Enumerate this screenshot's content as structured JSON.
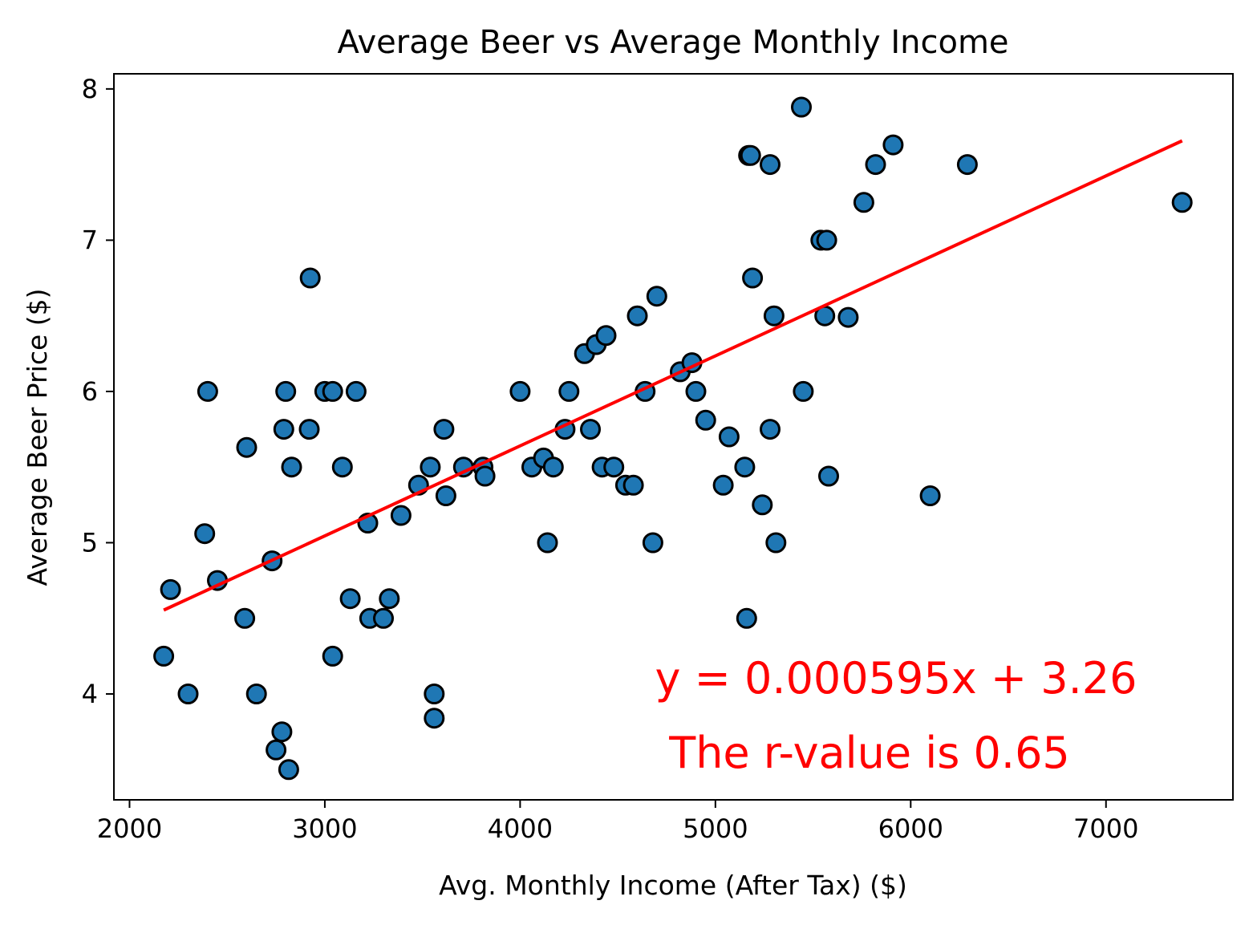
{
  "chart_data": {
    "type": "scatter",
    "title": "Average Beer vs Average Monthly Income",
    "xlabel": "Avg. Monthly Income (After Tax) ($)",
    "ylabel": "Average Beer Price ($)",
    "xlim": [
      1920,
      7650
    ],
    "ylim": [
      3.3,
      8.1
    ],
    "xticks": [
      2000,
      3000,
      4000,
      5000,
      6000,
      7000
    ],
    "yticks": [
      4,
      5,
      6,
      7,
      8
    ],
    "xtick_labels": [
      "2000",
      "3000",
      "4000",
      "5000",
      "6000",
      "7000"
    ],
    "ytick_labels": [
      "4",
      "5",
      "6",
      "7",
      "8"
    ],
    "grid": false,
    "colors": {
      "points": "#1f77b4",
      "point_edge": "#000000",
      "regression": "#ff0000",
      "annotation": "#ff0000"
    },
    "series": [
      {
        "values": [
          [
            2175,
            4.25
          ],
          [
            2210,
            4.69
          ],
          [
            2300,
            4.0
          ],
          [
            2385,
            5.06
          ],
          [
            2400,
            6.0
          ],
          [
            2450,
            4.75
          ],
          [
            2590,
            4.5
          ],
          [
            2600,
            5.63
          ],
          [
            2650,
            4.0
          ],
          [
            2730,
            4.88
          ],
          [
            2750,
            3.63
          ],
          [
            2780,
            3.75
          ],
          [
            2790,
            5.75
          ],
          [
            2800,
            6.0
          ],
          [
            2815,
            3.5
          ],
          [
            2830,
            5.5
          ],
          [
            2920,
            5.75
          ],
          [
            2925,
            6.75
          ],
          [
            3000,
            6.0
          ],
          [
            3040,
            6.0
          ],
          [
            3040,
            4.25
          ],
          [
            3090,
            5.5
          ],
          [
            3130,
            4.63
          ],
          [
            3160,
            6.0
          ],
          [
            3220,
            5.13
          ],
          [
            3230,
            4.5
          ],
          [
            3300,
            4.5
          ],
          [
            3330,
            4.63
          ],
          [
            3390,
            5.18
          ],
          [
            3480,
            5.38
          ],
          [
            3540,
            5.5
          ],
          [
            3560,
            4.0
          ],
          [
            3560,
            3.84
          ],
          [
            3610,
            5.75
          ],
          [
            3620,
            5.31
          ],
          [
            3710,
            5.5
          ],
          [
            3810,
            5.5
          ],
          [
            3820,
            5.44
          ],
          [
            4000,
            6.0
          ],
          [
            4060,
            5.5
          ],
          [
            4120,
            5.56
          ],
          [
            4140,
            5.0
          ],
          [
            4170,
            5.5
          ],
          [
            4230,
            5.75
          ],
          [
            4250,
            6.0
          ],
          [
            4330,
            6.25
          ],
          [
            4360,
            5.75
          ],
          [
            4390,
            6.31
          ],
          [
            4420,
            5.5
          ],
          [
            4440,
            6.37
          ],
          [
            4480,
            5.5
          ],
          [
            4540,
            5.38
          ],
          [
            4580,
            5.38
          ],
          [
            4600,
            6.5
          ],
          [
            4640,
            6.0
          ],
          [
            4680,
            5.0
          ],
          [
            4700,
            6.63
          ],
          [
            4820,
            6.13
          ],
          [
            4880,
            6.19
          ],
          [
            4900,
            6.0
          ],
          [
            4950,
            5.81
          ],
          [
            5040,
            5.38
          ],
          [
            5070,
            5.7
          ],
          [
            5150,
            5.5
          ],
          [
            5160,
            4.5
          ],
          [
            5170,
            7.56
          ],
          [
            5180,
            7.56
          ],
          [
            5190,
            6.75
          ],
          [
            5240,
            5.25
          ],
          [
            5280,
            7.5
          ],
          [
            5280,
            5.75
          ],
          [
            5300,
            6.5
          ],
          [
            5310,
            5.0
          ],
          [
            5440,
            7.88
          ],
          [
            5450,
            6.0
          ],
          [
            5540,
            7.0
          ],
          [
            5560,
            6.5
          ],
          [
            5570,
            7.0
          ],
          [
            5580,
            5.44
          ],
          [
            5680,
            6.49
          ],
          [
            5760,
            7.25
          ],
          [
            5820,
            7.5
          ],
          [
            5910,
            7.63
          ],
          [
            6100,
            5.31
          ],
          [
            6290,
            7.5
          ],
          [
            7390,
            7.25
          ]
        ]
      }
    ],
    "regression": {
      "slope": 0.000595,
      "intercept": 3.26,
      "x_range": [
        2175,
        7390
      ]
    },
    "annotations": {
      "equation": "y = 0.000595x + 3.26",
      "r_value": "The r-value is 0.65"
    }
  }
}
